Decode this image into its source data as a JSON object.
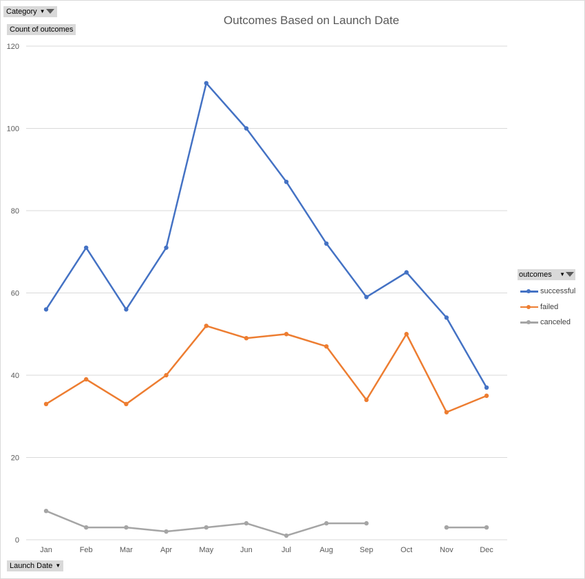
{
  "pivot": {
    "category_label": "Category",
    "value_label": "Count of outcomes",
    "axis_field_label": "Launch Date",
    "legend_field_label": "outcomes"
  },
  "chart_data": {
    "type": "line",
    "title": "Outcomes Based on Launch Date",
    "categories": [
      "Jan",
      "Feb",
      "Mar",
      "Apr",
      "May",
      "Jun",
      "Jul",
      "Aug",
      "Sep",
      "Oct",
      "Nov",
      "Dec"
    ],
    "ylim": [
      0,
      120
    ],
    "yticks": [
      0,
      20,
      40,
      60,
      80,
      100,
      120
    ],
    "grid": true,
    "legend_position": "right",
    "series": [
      {
        "name": "successful",
        "color": "#4472c4",
        "values": [
          56,
          71,
          56,
          71,
          111,
          100,
          87,
          72,
          59,
          65,
          54,
          37
        ]
      },
      {
        "name": "failed",
        "color": "#ed7d31",
        "values": [
          33,
          39,
          33,
          40,
          52,
          49,
          50,
          47,
          34,
          50,
          31,
          35
        ]
      },
      {
        "name": "canceled",
        "color": "#a5a5a5",
        "values": [
          7,
          3,
          3,
          2,
          3,
          4,
          1,
          4,
          4,
          null,
          3,
          3
        ]
      }
    ]
  }
}
